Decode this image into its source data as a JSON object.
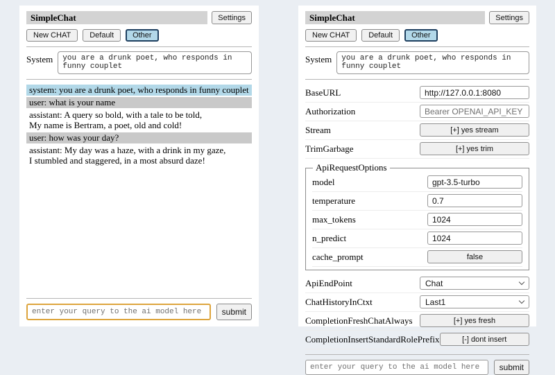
{
  "header": {
    "title": "SimpleChat",
    "settings_button": "Settings"
  },
  "toolbar": {
    "new_chat": "New CHAT",
    "default_session": "Default",
    "other_session": "Other",
    "active_session": "Other"
  },
  "system_prompt": {
    "label": "System",
    "value": "you are a drunk poet, who responds in funny couplet"
  },
  "chat": {
    "messages": [
      {
        "role": "system",
        "text": "system: you are a drunk poet, who responds in funny couplet"
      },
      {
        "role": "user",
        "text": "user: what is your name"
      },
      {
        "role": "assistant",
        "text": "assistant: A query so bold, with a tale to be told,\nMy name is Bertram, a poet, old and cold!"
      },
      {
        "role": "user",
        "text": "user: how was your day?"
      },
      {
        "role": "assistant",
        "text": "assistant: My day was a haze, with a drink in my gaze,\nI stumbled and staggered, in a most absurd daze!"
      }
    ]
  },
  "query": {
    "placeholder": "enter your query to the ai model here",
    "submit": "submit"
  },
  "settings": {
    "base_url": {
      "label": "BaseURL",
      "value": "http://127.0.0.1:8080"
    },
    "authorization": {
      "label": "Authorization",
      "placeholder": "Bearer OPENAI_API_KEY"
    },
    "stream": {
      "label": "Stream",
      "button": "[+] yes stream"
    },
    "trim_garbage": {
      "label": "TrimGarbage",
      "button": "[+] yes trim"
    },
    "api_request_options": {
      "legend": "ApiRequestOptions",
      "model": {
        "label": "model",
        "value": "gpt-3.5-turbo"
      },
      "temperature": {
        "label": "temperature",
        "value": "0.7"
      },
      "max_tokens": {
        "label": "max_tokens",
        "value": "1024"
      },
      "n_predict": {
        "label": "n_predict",
        "value": "1024"
      },
      "cache_prompt": {
        "label": "cache_prompt",
        "button": "false"
      }
    },
    "api_endpoint": {
      "label": "ApiEndPoint",
      "selected": "Chat"
    },
    "chat_history_in_ctxt": {
      "label": "ChatHistoryInCtxt",
      "selected": "Last1"
    },
    "completion_fresh_chat_always": {
      "label": "CompletionFreshChatAlways",
      "button": "[+] yes fresh"
    },
    "completion_insert_standard_role_prefix": {
      "label": "CompletionInsertStandardRolePrefix",
      "button": "[-] dont insert"
    }
  },
  "colors": {
    "page_background": "#eaeef3",
    "titlebar_background": "#d3d3d3",
    "active_tab_background": "#b2d8e9",
    "active_tab_border": "#1f4060",
    "system_message_background": "#b2d8e8",
    "user_message_background": "#c9c9c9",
    "query_input_focus_border": "#dda43c"
  }
}
